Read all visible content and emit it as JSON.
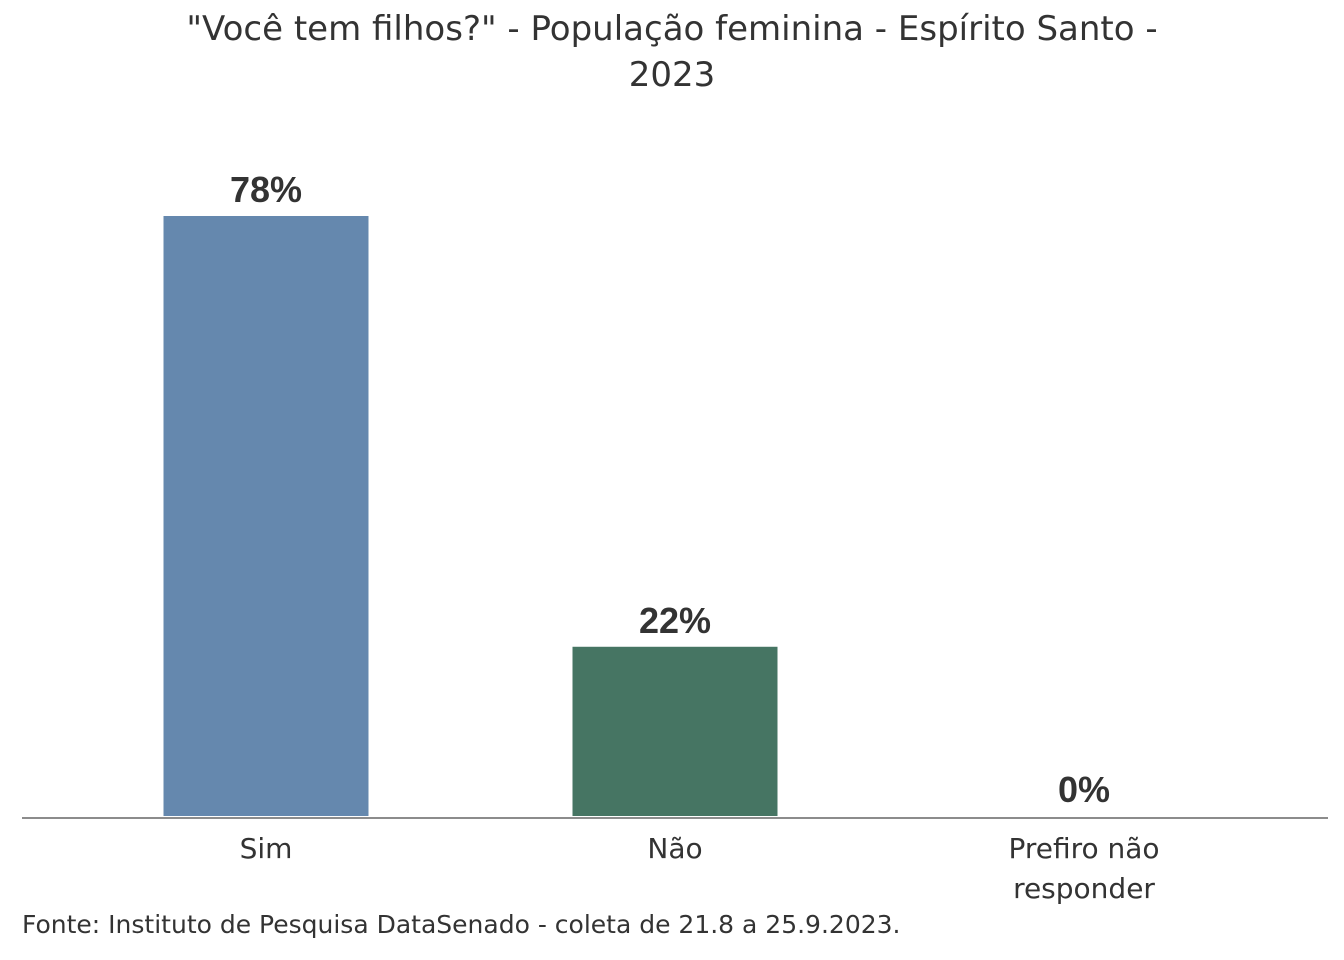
{
  "title": {
    "line1": "\"Você tem filhos?\" - População feminina - Espírito Santo -",
    "line2": "2023"
  },
  "source": "Fonte: Instituto de Pesquisa DataSenado - coleta de 21.8 a 25.9.2023.",
  "chart_data": {
    "type": "bar",
    "categories": [
      [
        "Sim"
      ],
      [
        "Não"
      ],
      [
        "Prefiro não",
        "responder"
      ]
    ],
    "values": [
      78,
      22,
      0
    ],
    "value_labels": [
      "78%",
      "22%",
      "0%"
    ],
    "colors": [
      "#6588AE",
      "#467563",
      "#8E8E8E"
    ],
    "ylim": [
      0,
      100
    ],
    "grid": false,
    "legend": "none",
    "axis_color": "#8c8c8c"
  }
}
